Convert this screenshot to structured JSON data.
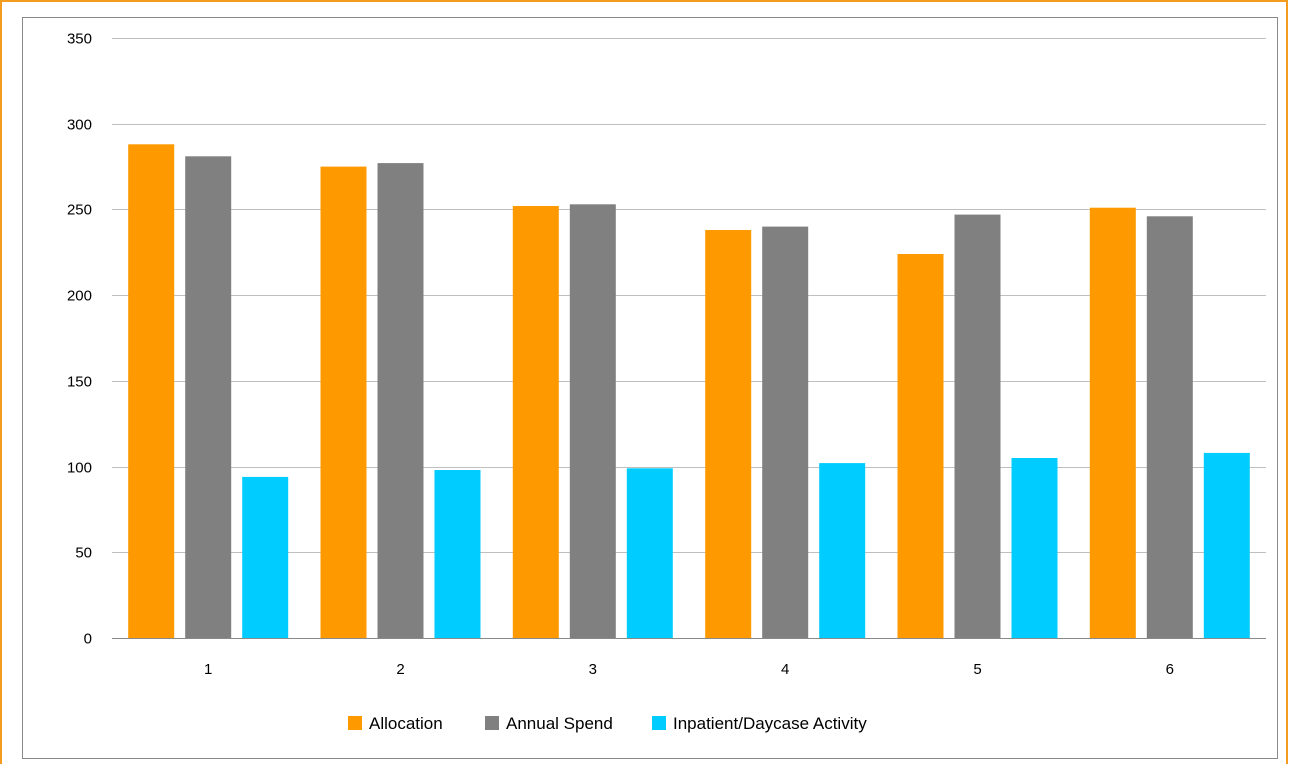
{
  "chart_data": {
    "type": "bar",
    "title": "",
    "xlabel": "",
    "ylabel": "",
    "categories": [
      "1",
      "2",
      "3",
      "4",
      "5",
      "6"
    ],
    "ylim": [
      0,
      350
    ],
    "yticks": [
      0,
      50,
      100,
      150,
      200,
      250,
      300,
      350
    ],
    "grid": true,
    "legend_position": "bottom",
    "series": [
      {
        "name": "Allocation",
        "color": "#ff9900",
        "values": [
          288,
          275,
          252,
          238,
          224,
          251
        ]
      },
      {
        "name": "Annual Spend",
        "color": "#808080",
        "values": [
          281,
          277,
          253,
          240,
          247,
          246
        ]
      },
      {
        "name": "Inpatient/Daycase Activity",
        "color": "#00ccff",
        "values": [
          94,
          98,
          99,
          102,
          105,
          108
        ]
      }
    ]
  }
}
